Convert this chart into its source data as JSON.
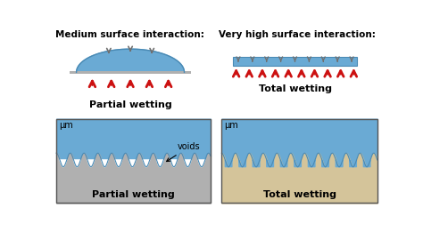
{
  "title_left": "Medium surface interaction:",
  "title_right": "Very high surface interaction:",
  "label_partial_top": "Partial wetting",
  "label_total_top": "Total wetting",
  "label_partial_bot": "Partial wetting",
  "label_total_bot": "Total wetting",
  "label_voids": "voids",
  "label_um": "μm",
  "blue_color": "#6aaad4",
  "blue_dark": "#4a8ab4",
  "gray_color": "#b0b0b0",
  "gray_dark": "#707070",
  "tan_color": "#d4c49a",
  "red_color": "#cc1111",
  "white": "#ffffff",
  "background": "#ffffff",
  "border_color": "#555555",
  "text_color": "#000000"
}
